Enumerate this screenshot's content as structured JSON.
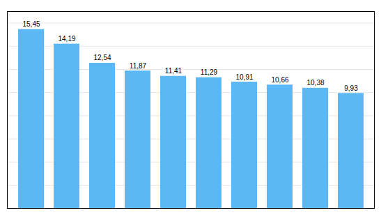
{
  "chart_data": {
    "type": "bar",
    "categories": [
      null,
      null,
      null,
      null,
      null,
      null,
      null,
      null,
      null,
      null
    ],
    "values": [
      15.45,
      14.19,
      12.54,
      11.87,
      11.41,
      11.29,
      10.91,
      10.66,
      10.38,
      9.93
    ],
    "value_labels": [
      "15,45",
      "14,19",
      "12,54",
      "11,87",
      "11,41",
      "11,29",
      "10,91",
      "10,66",
      "10,38",
      "9,93"
    ],
    "data_labels": true,
    "color": "#5BB8F5",
    "ylim": [
      0,
      17
    ],
    "yticks": [
      0,
      2,
      4,
      6,
      8,
      10,
      12,
      14,
      16
    ],
    "grid": true,
    "tick_labels": false
  }
}
